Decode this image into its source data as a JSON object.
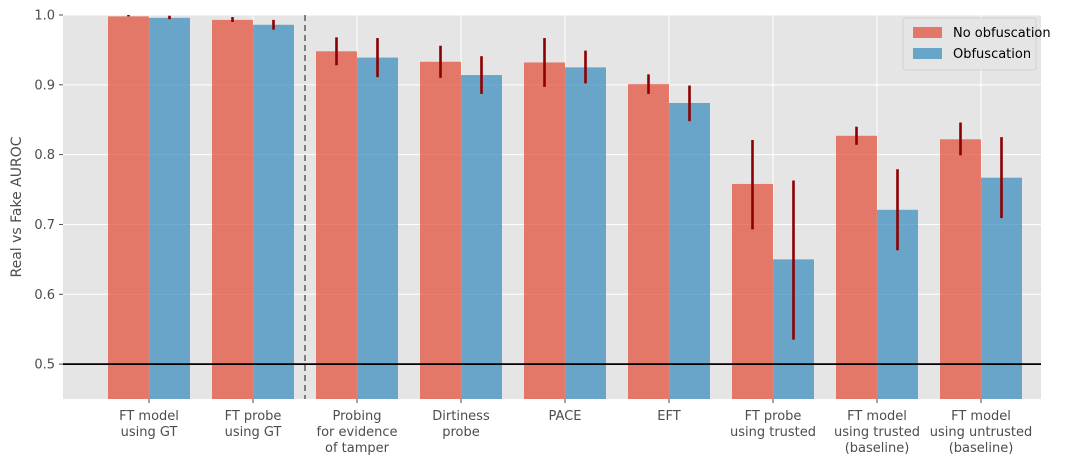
{
  "chart_data": {
    "type": "bar",
    "title": "",
    "xlabel": "",
    "ylabel": "Real vs Fake AUROC",
    "ylim": [
      0.45,
      1.0
    ],
    "yticks": [
      "0.5",
      "0.6",
      "0.7",
      "0.8",
      "0.9",
      "1.0"
    ],
    "grid": true,
    "legend_position": "top-right",
    "categories": [
      [
        "FT model",
        "using GT"
      ],
      [
        "FT probe",
        "using GT"
      ],
      [
        "Probing",
        "for evidence",
        "of tamper"
      ],
      [
        "Dirtiness",
        "probe"
      ],
      [
        "PACE"
      ],
      [
        "EFT"
      ],
      [
        "FT probe",
        "using trusted"
      ],
      [
        "FT model",
        "using trusted",
        "(baseline)"
      ],
      [
        "FT model",
        "using untrusted",
        "(baseline)"
      ]
    ],
    "series": [
      {
        "name": "No obfuscation",
        "color": "#E24A33",
        "values": [
          0.998,
          0.993,
          0.948,
          0.933,
          0.932,
          0.901,
          0.758,
          0.827,
          0.822
        ],
        "err_low": [
          0.998,
          0.99,
          0.928,
          0.91,
          0.897,
          0.887,
          0.693,
          0.814,
          0.799
        ],
        "err_high": [
          1.0,
          0.997,
          0.968,
          0.956,
          0.967,
          0.915,
          0.821,
          0.84,
          0.846
        ]
      },
      {
        "name": "Obfuscation",
        "color": "#348ABD",
        "values": [
          0.996,
          0.986,
          0.939,
          0.914,
          0.925,
          0.874,
          0.65,
          0.721,
          0.767
        ],
        "err_low": [
          0.994,
          0.979,
          0.911,
          0.887,
          0.902,
          0.848,
          0.535,
          0.663,
          0.709
        ],
        "err_high": [
          0.999,
          0.993,
          0.967,
          0.941,
          0.949,
          0.899,
          0.763,
          0.779,
          0.825
        ]
      }
    ],
    "error_bar_color": "#8B0000",
    "reference_line": {
      "y": 0.5,
      "color": "#000000"
    },
    "divider_after_category": 1
  }
}
